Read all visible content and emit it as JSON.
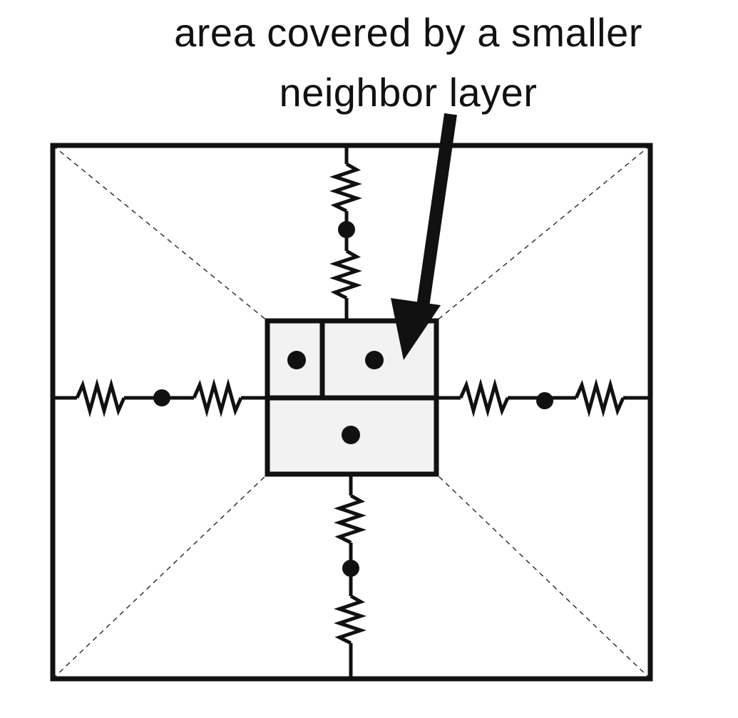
{
  "caption": {
    "line1": "area covered by a smaller",
    "line2": "neighbor layer"
  },
  "colors": {
    "stroke": "#111111",
    "inner_fill": "#f2f2f2",
    "background": "#ffffff",
    "dashed": "#333333"
  }
}
